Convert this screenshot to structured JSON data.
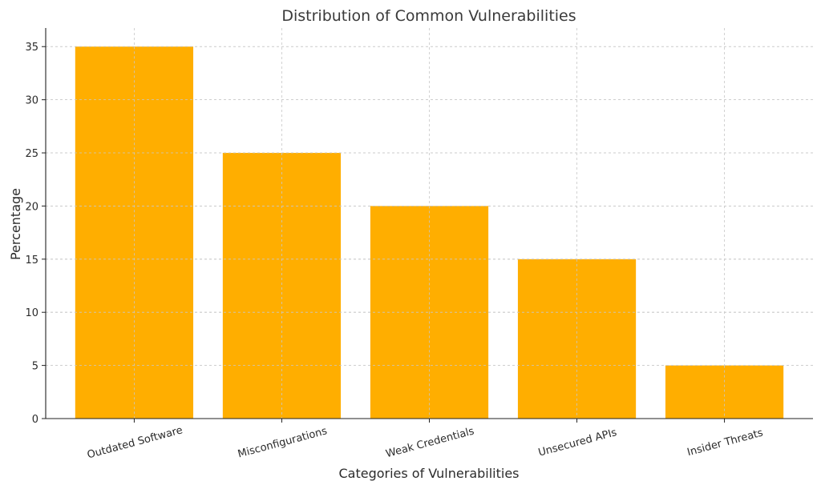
{
  "chart_data": {
    "type": "bar",
    "title": "Distribution of Common Vulnerabilities",
    "xlabel": "Categories of Vulnerabilities",
    "ylabel": "Percentage",
    "categories": [
      "Outdated Software",
      "Misconfigurations",
      "Weak Credentials",
      "Unsecured APIs",
      "Insider Threats"
    ],
    "values": [
      35,
      25,
      20,
      15,
      5
    ],
    "ylim": [
      0,
      36.75
    ],
    "yticks": [
      "0",
      "5",
      "10",
      "15",
      "20",
      "25",
      "30",
      "35"
    ],
    "grid": true,
    "bar_color": "#FFAE00",
    "x_tick_rotation_deg": -15
  }
}
